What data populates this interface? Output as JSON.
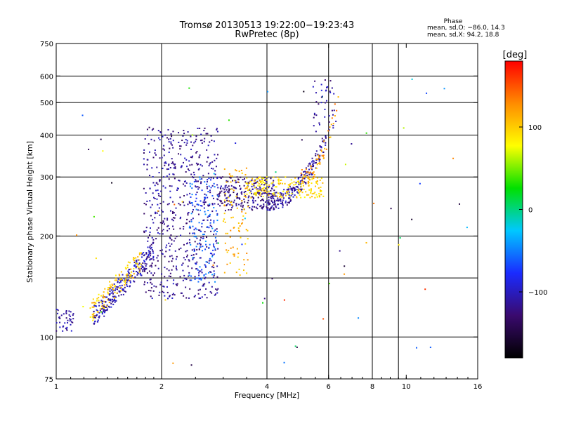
{
  "chart_data": {
    "type": "scatter",
    "title": "Tromsø 20130513 19:22:00−19:23:43",
    "subtitle": "RwPretec (8p)",
    "xlabel": "Frequency [MHz]",
    "ylabel": "Stationary phase Virtual Height [km]",
    "x_scale": "log",
    "y_scale": "log",
    "xlim": [
      1,
      16
    ],
    "ylim": [
      75,
      750
    ],
    "x_ticks": [
      1,
      2,
      4,
      6,
      8,
      10,
      16
    ],
    "x_tick_labels": [
      "1",
      "2",
      "4",
      "6",
      "8",
      "10",
      "16"
    ],
    "y_ticks": [
      75,
      100,
      200,
      300,
      400,
      500,
      600,
      750
    ],
    "y_tick_labels": [
      "75",
      "100",
      "200",
      "300",
      "400",
      "500",
      "600",
      "750"
    ],
    "x_gridlines": [
      2,
      4,
      6,
      8,
      9.5,
      16
    ],
    "y_gridlines": [
      100,
      150,
      200,
      300,
      400,
      500,
      600
    ],
    "grid": true,
    "phase_stats": {
      "heading": "Phase",
      "line_o": "mean, sd,O: −86.0, 14.3",
      "line_x": "mean, sd,X:  94.2, 18.8"
    },
    "colorbar": {
      "label": "[deg]",
      "range": [
        -180,
        180
      ],
      "ticks": [
        100,
        0,
        -100
      ],
      "tick_labels": [
        "100",
        "0",
        "−100"
      ],
      "placement": "right",
      "colors": [
        "#000000",
        "#3a0a6e",
        "#1a2bff",
        "#00c8ff",
        "#00e000",
        "#ffff00",
        "#ff8c00",
        "#ff0000"
      ]
    },
    "clusters": [
      {
        "name": "o-trace-low",
        "x": [
          1.0,
          1.12
        ],
        "y": [
          104,
          122
        ],
        "phase": -110,
        "n": 40
      },
      {
        "name": "o-trace-rise",
        "x": [
          1.28,
          1.9
        ],
        "y": [
          115,
          180
        ],
        "phase": -105,
        "n": 240
      },
      {
        "name": "o-trace-spread",
        "x": [
          1.78,
          2.9
        ],
        "y": [
          130,
          420
        ],
        "phase": -115,
        "n": 620
      },
      {
        "name": "o-trace-spread-lightblue",
        "x": [
          2.4,
          2.9
        ],
        "y": [
          145,
          300
        ],
        "phase": -60,
        "n": 120
      },
      {
        "name": "o-trace-f2",
        "x": [
          2.9,
          4.2
        ],
        "y": [
          238,
          300
        ],
        "phase": -120,
        "n": 240
      },
      {
        "name": "o-trace-f2-upper",
        "x": [
          4.0,
          5.9
        ],
        "y": [
          252,
          390
        ],
        "phase": -112,
        "n": 220
      },
      {
        "name": "o-trace-cusp",
        "x": [
          5.4,
          6.3
        ],
        "y": [
          400,
          600
        ],
        "phase": -110,
        "n": 40
      },
      {
        "name": "x-trace-low",
        "x": [
          1.25,
          1.75
        ],
        "y": [
          118,
          170
        ],
        "phase": 100,
        "n": 120
      },
      {
        "name": "x-trace-mid",
        "x": [
          3.0,
          3.55
        ],
        "y": [
          150,
          320
        ],
        "phase": 110,
        "n": 90
      },
      {
        "name": "x-trace-f2",
        "x": [
          3.5,
          5.8
        ],
        "y": [
          260,
          300
        ],
        "phase": 95,
        "n": 180
      },
      {
        "name": "x-trace-upper",
        "x": [
          5.0,
          6.4
        ],
        "y": [
          300,
          520
        ],
        "phase": 120,
        "n": 60
      },
      {
        "name": "noise",
        "x": [
          1.0,
          15.0
        ],
        "y": [
          78,
          600
        ],
        "phase": 0,
        "n": 70
      }
    ]
  }
}
